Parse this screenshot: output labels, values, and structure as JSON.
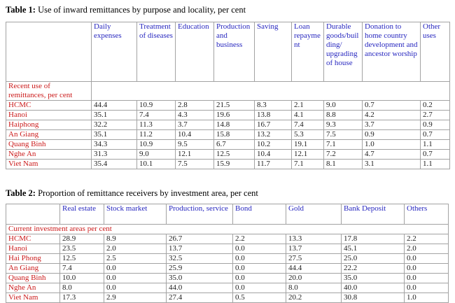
{
  "colors": {
    "background": "#ffffff",
    "header_text": "#2626bf",
    "row_label_text": "#cb1a1a",
    "value_text": "#1c1c1c",
    "border": "#a3a3a3",
    "title_text": "#000000"
  },
  "table1": {
    "title_prefix": "Table 1:",
    "title": "Use of inward remittances by purpose and locality, per cent",
    "columns": [
      "Daily expenses",
      "Treatment of diseases",
      "Education",
      "Production and business",
      "Saving",
      "Loan repayment",
      "Durable goods/building/ upgrading of house",
      "Donation to home country development and ancestor worship",
      "Other uses"
    ],
    "section_label": "Recent use of remittances,  per cent",
    "rows": [
      {
        "label": "HCMC",
        "values": [
          "44.4",
          "10.9",
          "2.8",
          "21.5",
          "8.3",
          "2.1",
          "9.0",
          "0.7",
          "0.2"
        ]
      },
      {
        "label": "Hanoi",
        "values": [
          "35.1",
          "7.4",
          "4.3",
          "19.6",
          "13.8",
          "4.1",
          "8.8",
          "4.2",
          "2.7"
        ]
      },
      {
        "label": "Haiphong",
        "values": [
          "32.2",
          "11.3",
          "3.7",
          "14.8",
          "16.7",
          "7.4",
          "9.3",
          "3.7",
          "0.9"
        ]
      },
      {
        "label": "An Giang",
        "values": [
          "35.1",
          "11.2",
          "10.4",
          "15.8",
          "13.2",
          "5.3",
          "7.5",
          "0.9",
          "0.7"
        ]
      },
      {
        "label": "Quang Binh",
        "values": [
          "34.3",
          "10.9",
          "9.5",
          "6.7",
          "10.2",
          "19.1",
          "7.1",
          "1.0",
          "1.1"
        ]
      },
      {
        "label": "Nghe An",
        "values": [
          "31.3",
          "9.0",
          "12.1",
          "12.5",
          "10.4",
          "12.1",
          "7.2",
          "4.7",
          "0.7"
        ]
      },
      {
        "label": "Viet Nam",
        "values": [
          "35.4",
          "10.1",
          "7.5",
          "15.9",
          "11.7",
          "7.1",
          "8.1",
          "3.1",
          "1.1"
        ]
      }
    ]
  },
  "table2": {
    "title_prefix": "Table 2:",
    "title": "Proportion of remittance receivers by investment area,  per cent",
    "columns": [
      "Real estate",
      "Stock market",
      "Production, service",
      "Bond",
      "Gold",
      "Bank Deposit",
      "Others"
    ],
    "section_label": "Current investment areas per cent",
    "rows": [
      {
        "label": "HCMC",
        "values": [
          "28.9",
          "8.9",
          "26.7",
          "2.2",
          "13.3",
          "17.8",
          "2.2"
        ]
      },
      {
        "label": "Hanoi",
        "values": [
          "23.5",
          "2.0",
          "13.7",
          "0.0",
          "13.7",
          "45.1",
          "2.0"
        ]
      },
      {
        "label": "Hai Phong",
        "values": [
          "12.5",
          "2.5",
          "32.5",
          "0.0",
          "27.5",
          "25.0",
          "0.0"
        ]
      },
      {
        "label": "An Giang",
        "values": [
          "7.4",
          "0.0",
          "25.9",
          "0.0",
          "44.4",
          "22.2",
          "0.0"
        ]
      },
      {
        "label": "Quang Binh",
        "values": [
          "10.0",
          "0.0",
          "35.0",
          "0.0",
          "20.0",
          "35.0",
          "0.0"
        ]
      },
      {
        "label": "Nghe An",
        "values": [
          "8.0",
          "0.0",
          "44.0",
          "0.0",
          "8.0",
          "40.0",
          "0.0"
        ]
      },
      {
        "label": "Viet Nam",
        "values": [
          "17.3",
          "2.9",
          "27.4",
          "0.5",
          "20.2",
          "30.8",
          "1.0"
        ]
      }
    ]
  }
}
